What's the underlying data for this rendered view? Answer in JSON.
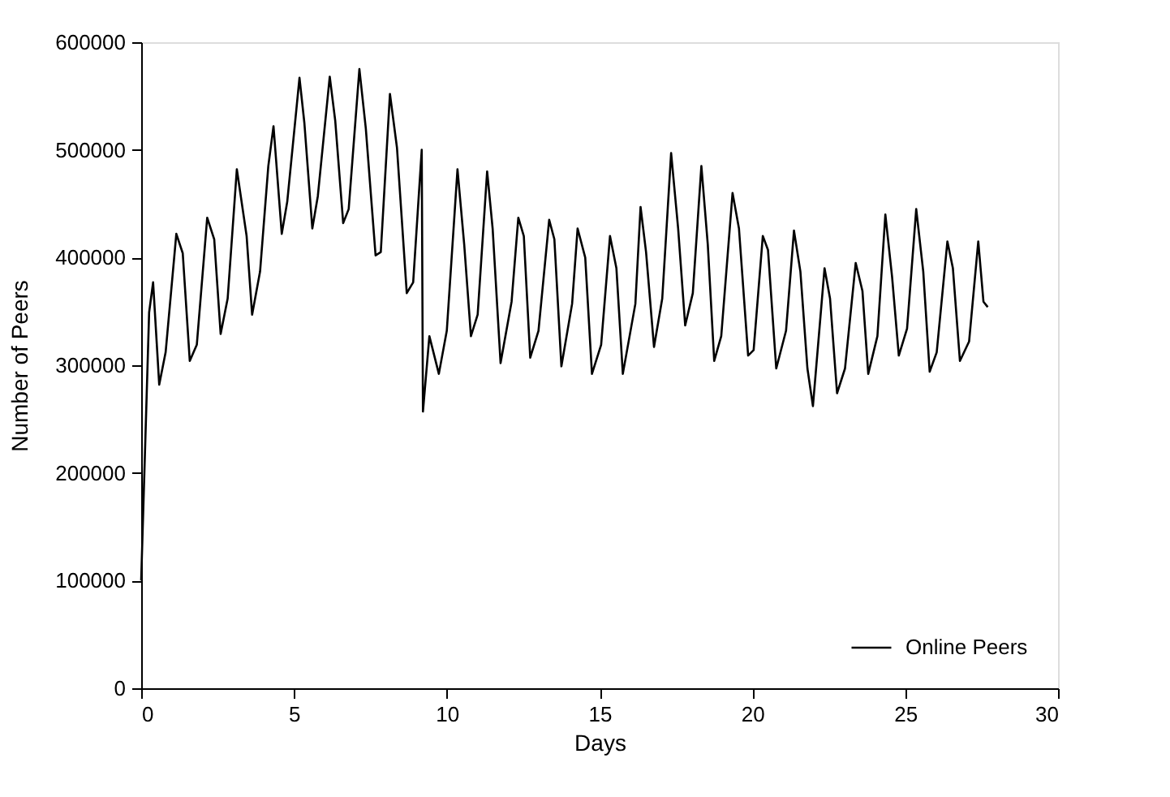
{
  "chart_data": {
    "type": "line",
    "xlabel": "Days",
    "ylabel": "Number of Peers",
    "xlim": [
      0,
      30
    ],
    "xticks": [
      0,
      5,
      10,
      15,
      20,
      25,
      30
    ],
    "ylim": [
      0,
      600000
    ],
    "yticks": [
      0,
      100000,
      200000,
      300000,
      400000,
      500000,
      600000
    ],
    "grid": false,
    "legend": "bottom right",
    "line_style": "solid",
    "marker": "none",
    "series": [
      {
        "name": "Online Peers",
        "color": "#000000",
        "x": [
          0,
          0.26,
          0.39,
          0.59,
          0.8,
          1.15,
          1.36,
          1.59,
          1.82,
          2.16,
          2.39,
          2.6,
          2.83,
          3.13,
          3.45,
          3.63,
          3.89,
          4.16,
          4.33,
          4.6,
          4.78,
          5.18,
          5.34,
          5.6,
          5.78,
          6.17,
          6.35,
          6.61,
          6.79,
          7.14,
          7.35,
          7.67,
          7.84,
          8.14,
          8.37,
          8.69,
          8.9,
          9.18,
          9.22,
          9.43,
          9.74,
          10.0,
          10.35,
          10.57,
          10.79,
          11.01,
          11.32,
          11.5,
          11.76,
          12.12,
          12.34,
          12.52,
          12.73,
          13.0,
          13.35,
          13.52,
          13.75,
          14.1,
          14.28,
          14.53,
          14.75,
          15.05,
          15.34,
          15.55,
          15.76,
          16.17,
          16.34,
          16.52,
          16.78,
          17.05,
          17.34,
          17.57,
          17.8,
          18.05,
          18.33,
          18.54,
          18.75,
          18.98,
          19.35,
          19.56,
          19.86,
          20.04,
          20.34,
          20.51,
          20.78,
          21.1,
          21.36,
          21.57,
          21.8,
          21.98,
          22.36,
          22.54,
          22.77,
          23.03,
          23.38,
          23.6,
          23.79,
          24.09,
          24.35,
          24.57,
          24.79,
          25.06,
          25.36,
          25.59,
          25.8,
          26.03,
          26.38,
          26.56,
          26.79,
          27.09,
          27.39,
          27.56,
          27.7
        ],
        "values": [
          100000,
          349000,
          377000,
          282000,
          312000,
          422000,
          404000,
          304000,
          319000,
          437000,
          417000,
          329000,
          362000,
          482000,
          420000,
          347000,
          387000,
          485000,
          522000,
          422000,
          452000,
          567000,
          525000,
          427000,
          457000,
          568000,
          527000,
          432000,
          445000,
          575000,
          520000,
          402000,
          405000,
          552000,
          502000,
          367000,
          377000,
          500000,
          257000,
          327000,
          292000,
          332000,
          482000,
          412000,
          327000,
          347000,
          480000,
          427000,
          302000,
          359000,
          437000,
          420000,
          307000,
          332000,
          435000,
          417000,
          299000,
          357000,
          427000,
          400000,
          292000,
          319000,
          420000,
          390000,
          292000,
          357000,
          447000,
          405000,
          317000,
          362000,
          497000,
          427000,
          337000,
          367000,
          485000,
          412000,
          304000,
          327000,
          460000,
          427000,
          309000,
          314000,
          420000,
          407000,
          297000,
          332000,
          425000,
          387000,
          297000,
          262000,
          390000,
          362000,
          274000,
          297000,
          395000,
          369000,
          292000,
          327000,
          440000,
          382000,
          309000,
          334000,
          445000,
          387000,
          294000,
          312000,
          415000,
          390000,
          304000,
          322000,
          415000,
          359000,
          354000
        ]
      }
    ]
  }
}
